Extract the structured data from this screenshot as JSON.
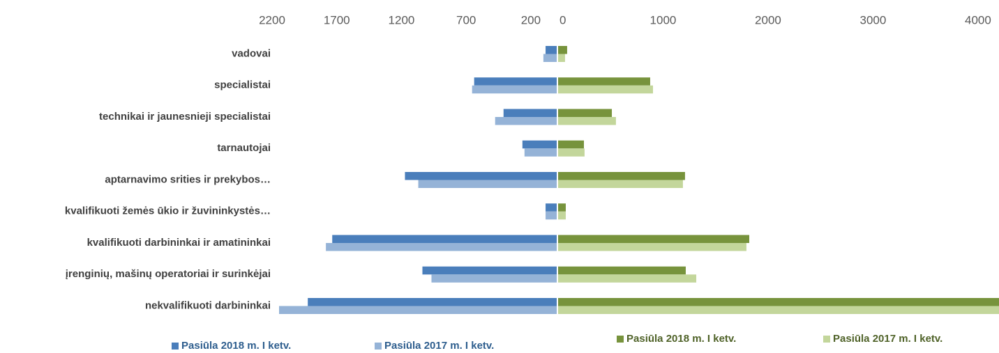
{
  "chart_data": [
    {
      "type": "hbar",
      "reversed": true,
      "categories": [
        "vadovai",
        "specialistai",
        "technikai ir jaunesnieji specialistai",
        "tarnautojai",
        "aptarnavimo srities ir prekybos…",
        "kvalifikuoti žemės ūkio ir žuvininkystės…",
        "kvalifikuoti darbininkai ir amatininkai",
        "įrenginių, mašinų operatoriai ir surinkėjai",
        "nekvalifikuoti darbininkai"
      ],
      "series": [
        {
          "name": "Pasiūla 2018 m. I ketv.",
          "color": "#4a7ebb",
          "values": [
            86,
            638,
            411,
            265,
            1173,
            86,
            1735,
            1038,
            1924
          ]
        },
        {
          "name": "Pasiūla 2017 m. I ketv.",
          "color": "#95b3d7",
          "values": [
            103,
            654,
            476,
            249,
            1070,
            86,
            1784,
            968,
            2146
          ]
        }
      ],
      "xlim": [
        0,
        2200
      ],
      "xticks": [
        2200,
        1700,
        1200,
        700,
        200
      ]
    },
    {
      "type": "hbar",
      "reversed": false,
      "series": [
        {
          "name": "Pasiūla 2018 m. I ketv.",
          "color": "#77933c",
          "values": [
            86,
            877,
            512,
            246,
            1209,
            73,
            1821,
            1216,
            4400
          ]
        },
        {
          "name": "Pasiūla 2017 m. I ketv.",
          "color": "#c3d69b",
          "values": [
            66,
            904,
            551,
            252,
            1189,
            73,
            1794,
            1316,
            4400
          ]
        }
      ],
      "xlim": [
        0,
        4200
      ],
      "xticks": [
        0,
        1000,
        2000,
        3000,
        4000
      ]
    }
  ]
}
